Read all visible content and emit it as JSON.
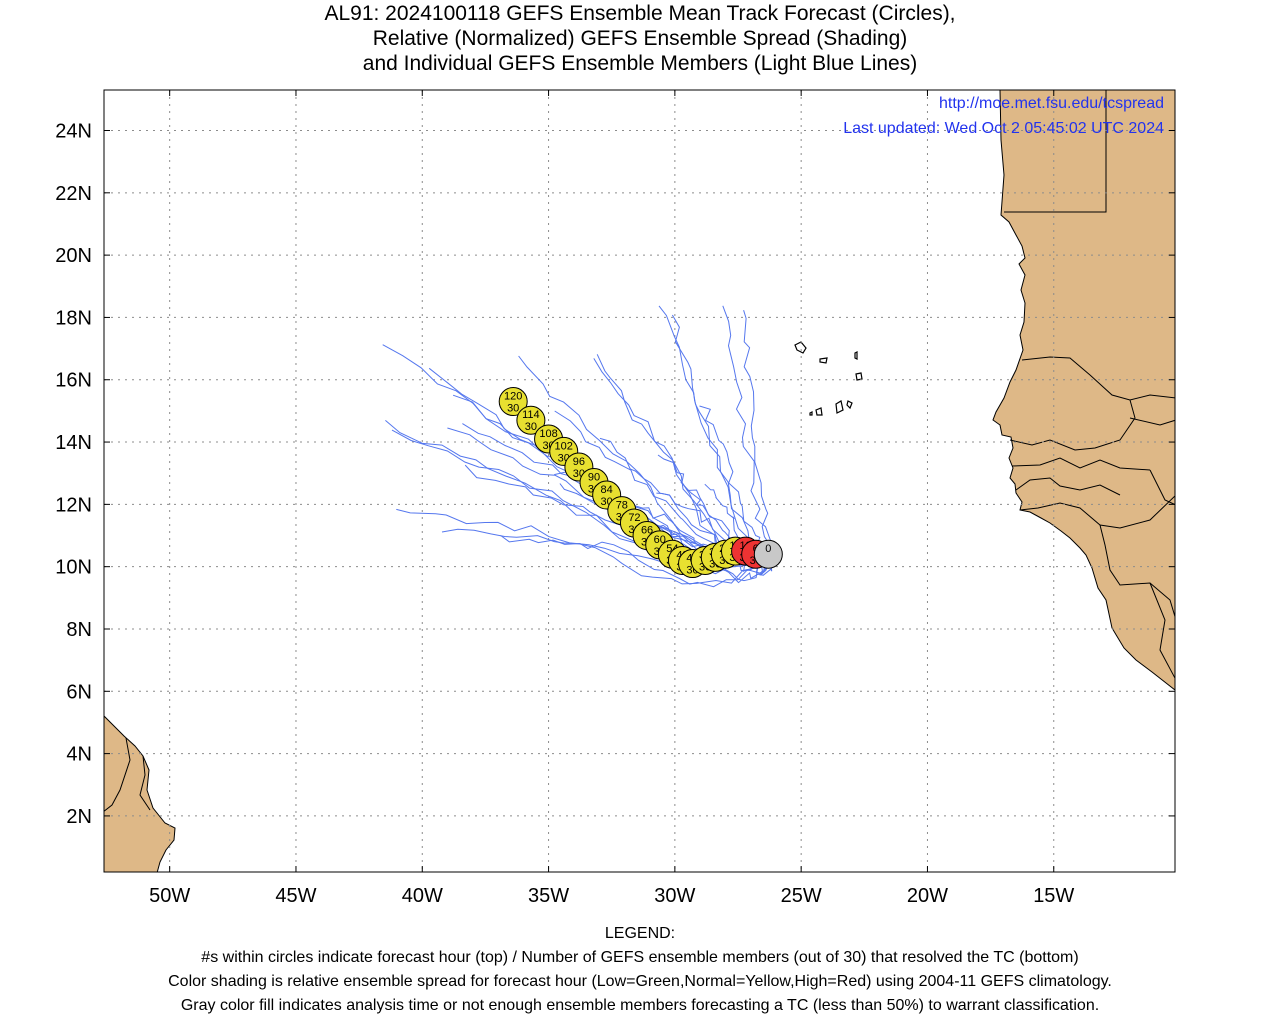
{
  "title": {
    "line1": "AL91: 2024100118 GEFS Ensemble Mean Track Forecast (Circles),",
    "line2": "Relative (Normalized) GEFS Ensemble Spread (Shading)",
    "line3": "and Individual GEFS Ensemble Members (Light Blue Lines)"
  },
  "credits": {
    "url": "http://moe.met.fsu.edu/tcspread",
    "updated": "Last updated: Wed Oct 2 05:45:02 UTC 2024"
  },
  "axes": {
    "x_ticks": [
      "50W",
      "45W",
      "40W",
      "35W",
      "30W",
      "25W",
      "20W",
      "15W"
    ],
    "y_ticks": [
      "24N",
      "22N",
      "20N",
      "18N",
      "16N",
      "14N",
      "12N",
      "10N",
      "8N",
      "6N",
      "4N",
      "2N"
    ]
  },
  "legend": {
    "heading": "LEGEND:",
    "line1": "#s within circles indicate forecast hour (top) / Number of GEFS ensemble members (out of 30) that resolved the TC (bottom)",
    "line2": "Color shading is relative ensemble spread for forecast hour (Low=Green,Normal=Yellow,High=Red) using 2004-11 GEFS climatology.",
    "line3": "Gray color fill indicates analysis time or not enough ensemble members forecasting a TC (less than 50%) to warrant classification."
  },
  "colors": {
    "land": "#deb887",
    "ocean": "#ffffff",
    "member_tracks": "#5577ee",
    "spread_normal": "#e8e030",
    "spread_high": "#ee3333",
    "analysis": "#c8c8c8",
    "credit_text": "#2233ee"
  },
  "chart_data": {
    "type": "map-track",
    "lon_range": [
      -52.6,
      -10.2
    ],
    "lat_range": [
      0.2,
      25.3
    ],
    "mean_track": [
      {
        "hour": "0",
        "members": "",
        "lon": -26.3,
        "lat": 10.4,
        "spread": "analysis"
      },
      {
        "hour": "6",
        "members": "30",
        "lon": -26.8,
        "lat": 10.4,
        "spread": "high"
      },
      {
        "hour": "12",
        "members": "30",
        "lon": -27.2,
        "lat": 10.5,
        "spread": "high"
      },
      {
        "hour": "18",
        "members": "30",
        "lon": -27.6,
        "lat": 10.5,
        "spread": "normal"
      },
      {
        "hour": "24",
        "members": "30",
        "lon": -28.0,
        "lat": 10.4,
        "spread": "normal"
      },
      {
        "hour": "30",
        "members": "30",
        "lon": -28.4,
        "lat": 10.3,
        "spread": "normal"
      },
      {
        "hour": "36",
        "members": "30",
        "lon": -28.8,
        "lat": 10.2,
        "spread": "normal"
      },
      {
        "hour": "42",
        "members": "30",
        "lon": -29.3,
        "lat": 10.1,
        "spread": "normal"
      },
      {
        "hour": "48",
        "members": "30",
        "lon": -29.7,
        "lat": 10.2,
        "spread": "normal"
      },
      {
        "hour": "54",
        "members": "30",
        "lon": -30.1,
        "lat": 10.4,
        "spread": "normal"
      },
      {
        "hour": "60",
        "members": "30",
        "lon": -30.6,
        "lat": 10.7,
        "spread": "normal"
      },
      {
        "hour": "66",
        "members": "30",
        "lon": -31.1,
        "lat": 11.0,
        "spread": "normal"
      },
      {
        "hour": "72",
        "members": "30",
        "lon": -31.6,
        "lat": 11.4,
        "spread": "normal"
      },
      {
        "hour": "78",
        "members": "30",
        "lon": -32.1,
        "lat": 11.8,
        "spread": "normal"
      },
      {
        "hour": "84",
        "members": "30",
        "lon": -32.7,
        "lat": 12.3,
        "spread": "normal"
      },
      {
        "hour": "90",
        "members": "30",
        "lon": -33.2,
        "lat": 12.7,
        "spread": "normal"
      },
      {
        "hour": "96",
        "members": "30",
        "lon": -33.8,
        "lat": 13.2,
        "spread": "normal"
      },
      {
        "hour": "102",
        "members": "30",
        "lon": -34.4,
        "lat": 13.7,
        "spread": "normal"
      },
      {
        "hour": "108",
        "members": "30",
        "lon": -35.0,
        "lat": 14.1,
        "spread": "normal"
      },
      {
        "hour": "114",
        "members": "30",
        "lon": -35.7,
        "lat": 14.7,
        "spread": "normal"
      },
      {
        "hour": "120",
        "members": "30",
        "lon": -36.4,
        "lat": 15.3,
        "spread": "normal"
      }
    ]
  }
}
